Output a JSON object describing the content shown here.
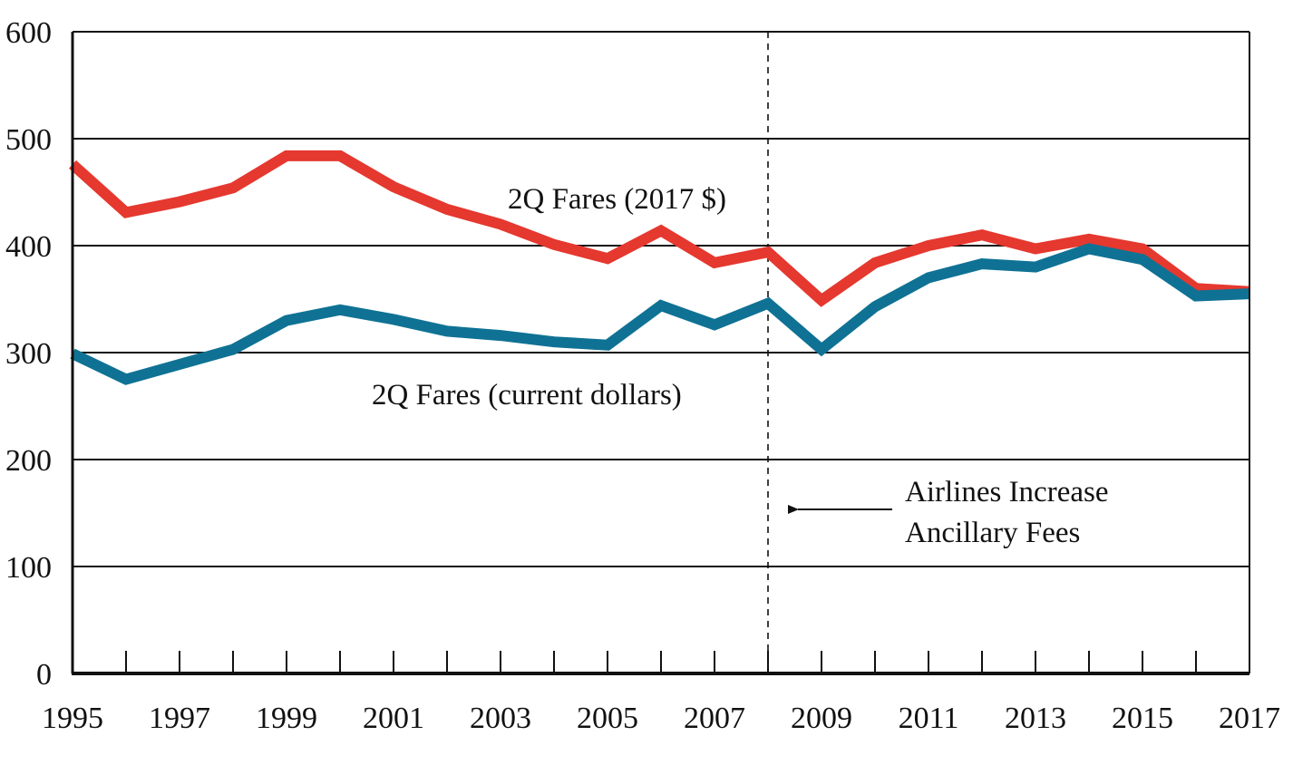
{
  "chart_data": {
    "type": "line",
    "x": [
      1995,
      1996,
      1997,
      1998,
      1999,
      2000,
      2001,
      2002,
      2003,
      2004,
      2005,
      2006,
      2007,
      2008,
      2009,
      2010,
      2011,
      2012,
      2013,
      2014,
      2015,
      2016,
      2017
    ],
    "series": [
      {
        "name": "2Q Fares (2017 $)",
        "color": "#e5382f",
        "values": [
          476,
          431,
          441,
          454,
          484,
          484,
          455,
          434,
          420,
          401,
          388,
          414,
          384,
          394,
          349,
          384,
          400,
          410,
          397,
          406,
          397,
          360,
          357
        ]
      },
      {
        "name": "2Q Fares (current dollars)",
        "color": "#0f7294",
        "values": [
          299,
          275,
          289,
          303,
          330,
          340,
          331,
          320,
          316,
          310,
          307,
          344,
          326,
          346,
          303,
          343,
          370,
          383,
          380,
          397,
          387,
          353,
          355
        ]
      }
    ],
    "xlim": [
      1995,
      2017
    ],
    "ylim": [
      0,
      600
    ],
    "x_ticks": [
      1995,
      1997,
      1999,
      2001,
      2003,
      2005,
      2007,
      2009,
      2011,
      2013,
      2015,
      2017
    ],
    "y_ticks": [
      0,
      100,
      200,
      300,
      400,
      500,
      600
    ],
    "x_tick_labels": [
      "1995",
      "1997",
      "1999",
      "2001",
      "2003",
      "2005",
      "2007",
      "2009",
      "2011",
      "2013",
      "2015",
      "2017"
    ],
    "y_tick_labels": [
      "0",
      "100",
      "200",
      "300",
      "400",
      "500",
      "600"
    ],
    "grid": "horizontal",
    "reference_line": {
      "x": 2008,
      "style": "dashed"
    },
    "annotation": {
      "lines": [
        "Airlines Increase",
        "Ancillary Fees"
      ],
      "points_to_x": 2008
    },
    "title": "",
    "xlabel": "",
    "ylabel": ""
  }
}
